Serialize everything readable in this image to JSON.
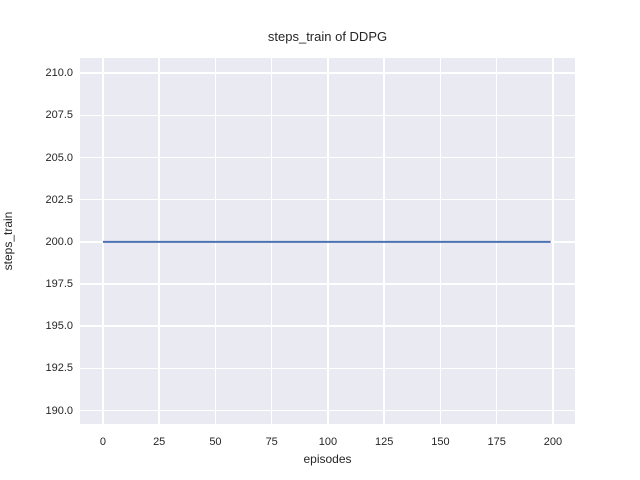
{
  "chart_data": {
    "type": "line",
    "title": "steps_train of DDPG",
    "xlabel": "episodes",
    "ylabel": "steps_train",
    "xlim": [
      -10.2,
      209.8
    ],
    "ylim": [
      189.2,
      210.9
    ],
    "xticks": [
      0,
      25,
      50,
      75,
      100,
      125,
      150,
      175,
      200
    ],
    "xtick_labels": [
      "0",
      "25",
      "50",
      "75",
      "100",
      "125",
      "150",
      "175",
      "200"
    ],
    "yticks": [
      190.0,
      192.5,
      195.0,
      197.5,
      200.0,
      202.5,
      205.0,
      207.5,
      210.0
    ],
    "ytick_labels": [
      "190.0",
      "192.5",
      "195.0",
      "197.5",
      "200.0",
      "202.5",
      "205.0",
      "207.5",
      "210.0"
    ],
    "grid": true,
    "legend": "none",
    "plot_bg_color": "#eaeaf2",
    "grid_color": "#ffffff",
    "text_color": "#262626",
    "series": [
      {
        "name": "steps_train",
        "color": "#4C72B0",
        "x": [
          0,
          199
        ],
        "y": [
          200,
          200
        ]
      }
    ]
  }
}
